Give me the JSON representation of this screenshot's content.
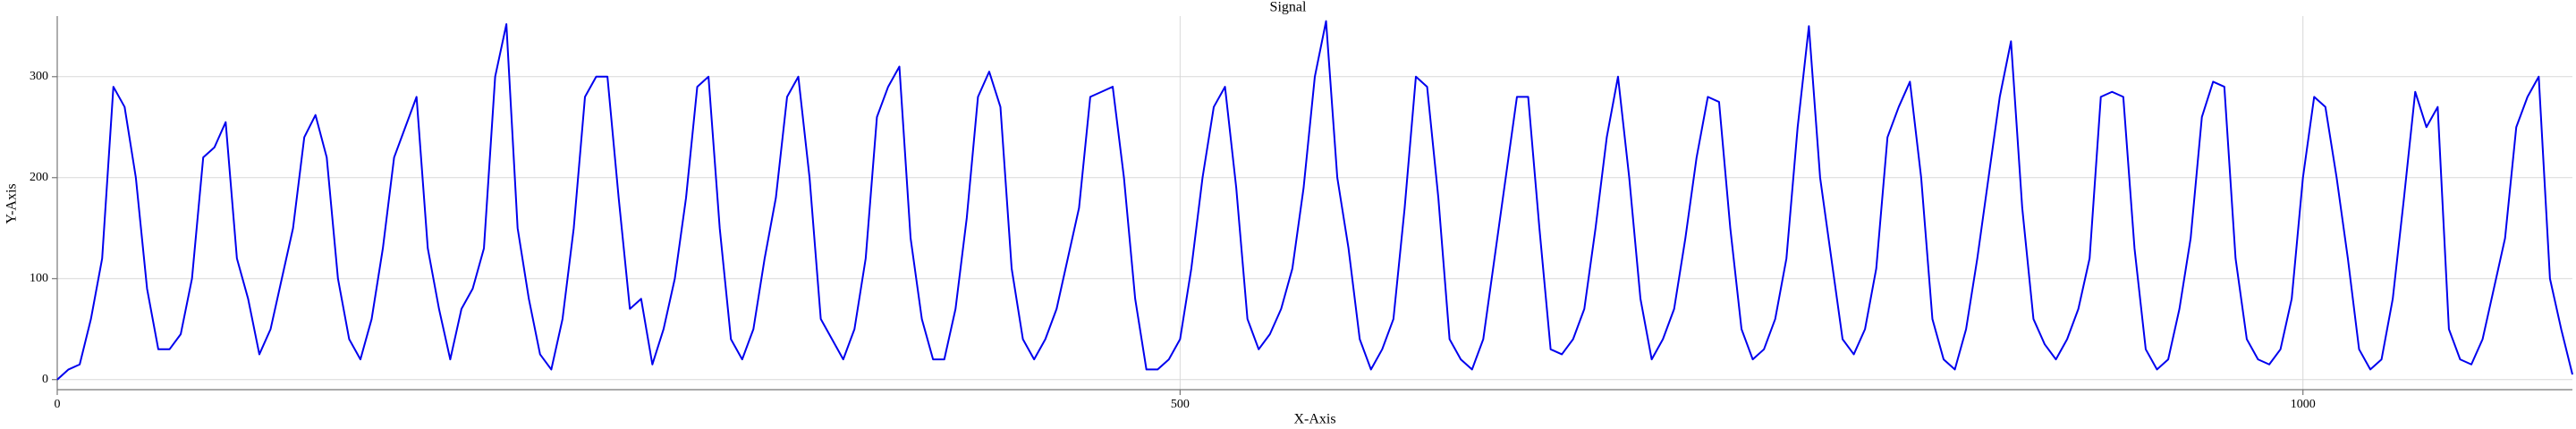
{
  "chart_data": {
    "type": "line",
    "title": "Signal",
    "x_label": "X-Axis",
    "y_label": "Y-Axis",
    "color": "#0000ee",
    "xlim": [
      0,
      1120
    ],
    "ylim": [
      -10,
      360
    ],
    "xticks": [
      0,
      500,
      1000
    ],
    "yticks": [
      0,
      100,
      200,
      300
    ],
    "grid": true,
    "x": [
      0,
      5,
      10,
      15,
      20,
      25,
      30,
      35,
      40,
      45,
      50,
      55,
      60,
      65,
      70,
      75,
      80,
      85,
      90,
      95,
      100,
      105,
      110,
      115,
      120,
      125,
      130,
      135,
      140,
      145,
      150,
      155,
      160,
      165,
      170,
      175,
      180,
      185,
      190,
      195,
      200,
      205,
      210,
      215,
      220,
      225,
      230,
      235,
      240,
      245,
      250,
      255,
      260,
      265,
      270,
      275,
      280,
      285,
      290,
      295,
      300,
      305,
      310,
      315,
      320,
      325,
      330,
      335,
      340,
      345,
      350,
      355,
      360,
      365,
      370,
      375,
      380,
      385,
      390,
      395,
      400,
      405,
      410,
      415,
      420,
      425,
      430,
      435,
      440,
      445,
      450,
      455,
      460,
      465,
      470,
      475,
      480,
      485,
      490,
      495,
      500,
      505,
      510,
      515,
      520,
      525,
      530,
      535,
      540,
      545,
      550,
      555,
      560,
      565,
      570,
      575,
      580,
      585,
      590,
      595,
      600,
      605,
      610,
      615,
      620,
      625,
      630,
      635,
      640,
      645,
      650,
      655,
      660,
      665,
      670,
      675,
      680,
      685,
      690,
      695,
      700,
      705,
      710,
      715,
      720,
      725,
      730,
      735,
      740,
      745,
      750,
      755,
      760,
      765,
      770,
      775,
      780,
      785,
      790,
      795,
      800,
      805,
      810,
      815,
      820,
      825,
      830,
      835,
      840,
      845,
      850,
      855,
      860,
      865,
      870,
      875,
      880,
      885,
      890,
      895,
      900,
      905,
      910,
      915,
      920,
      925,
      930,
      935,
      940,
      945,
      950,
      955,
      960,
      965,
      970,
      975,
      980,
      985,
      990,
      995,
      1000,
      1005,
      1010,
      1015,
      1020,
      1025,
      1030,
      1035,
      1040,
      1045,
      1050,
      1055,
      1060,
      1065,
      1070,
      1075,
      1080,
      1085,
      1090,
      1095,
      1100,
      1105,
      1110,
      1115,
      1120
    ],
    "values": [
      0,
      10,
      15,
      60,
      120,
      290,
      270,
      200,
      90,
      30,
      30,
      45,
      100,
      220,
      230,
      255,
      120,
      80,
      25,
      50,
      100,
      150,
      240,
      262,
      220,
      100,
      40,
      20,
      60,
      130,
      220,
      250,
      280,
      130,
      70,
      20,
      70,
      90,
      130,
      300,
      352,
      150,
      80,
      25,
      10,
      60,
      150,
      280,
      300,
      300,
      180,
      70,
      80,
      15,
      50,
      100,
      180,
      290,
      300,
      150,
      40,
      20,
      50,
      120,
      180,
      280,
      300,
      200,
      60,
      40,
      20,
      50,
      120,
      260,
      290,
      310,
      140,
      60,
      20,
      20,
      70,
      160,
      280,
      305,
      270,
      110,
      40,
      20,
      40,
      70,
      120,
      170,
      280,
      285,
      290,
      200,
      80,
      10,
      10,
      20,
      40,
      110,
      200,
      270,
      290,
      190,
      60,
      30,
      45,
      70,
      110,
      190,
      300,
      355,
      200,
      130,
      40,
      10,
      30,
      60,
      170,
      300,
      290,
      180,
      40,
      20,
      10,
      40,
      120,
      200,
      280,
      280,
      150,
      30,
      25,
      40,
      70,
      150,
      240,
      300,
      200,
      80,
      20,
      40,
      70,
      140,
      220,
      280,
      275,
      150,
      50,
      20,
      30,
      60,
      120,
      250,
      350,
      200,
      120,
      40,
      25,
      50,
      110,
      240,
      270,
      295,
      200,
      60,
      20,
      10,
      50,
      120,
      200,
      280,
      335,
      170,
      60,
      35,
      20,
      40,
      70,
      120,
      280,
      285,
      280,
      130,
      30,
      10,
      20,
      70,
      140,
      260,
      295,
      290,
      120,
      40,
      20,
      15,
      30,
      80,
      200,
      280,
      270,
      200,
      120,
      30,
      10,
      20,
      80,
      180,
      285,
      250,
      270,
      50,
      20,
      15,
      40,
      90,
      140,
      250,
      280,
      300,
      100,
      50,
      5
    ]
  }
}
